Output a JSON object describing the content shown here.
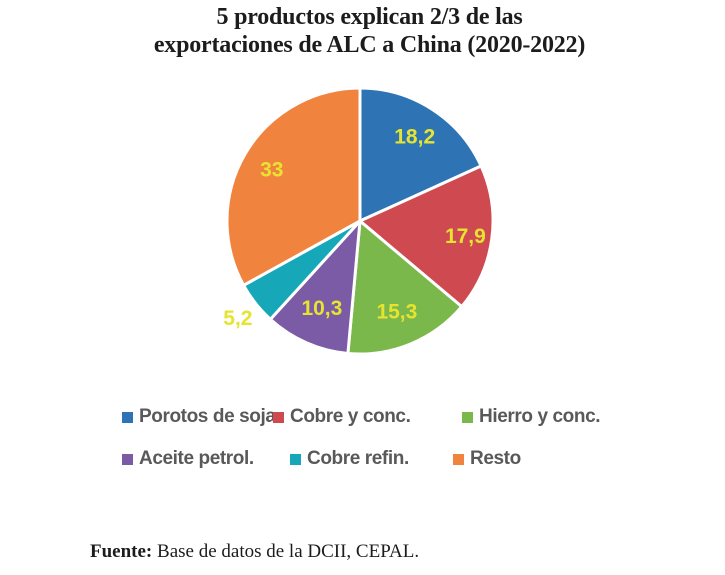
{
  "title": {
    "line1": "5 productos explican 2/3 de las",
    "line2": "exportaciones de ALC a China (2020-2022)"
  },
  "chart_data": {
    "type": "pie",
    "title": "5 productos explican 2/3 de las exportaciones de ALC a China (2020-2022)",
    "unit": "percent share",
    "start_angle": "top",
    "direction": "clockwise",
    "label_color": "#e6e430",
    "legend_position": "bottom",
    "slices": [
      {
        "label": "Porotos de soja",
        "value": 18.2,
        "display": "18,2",
        "color": "#2e74b5",
        "label_placement": "inside"
      },
      {
        "label": "Cobre y conc.",
        "value": 17.9,
        "display": "17,9",
        "color": "#ce4a50",
        "label_placement": "inside"
      },
      {
        "label": "Hierro y conc.",
        "value": 15.3,
        "display": "15,3",
        "color": "#7ab84c",
        "label_placement": "inside"
      },
      {
        "label": "Aceite petrol.",
        "value": 10.3,
        "display": "10,3",
        "color": "#7b5ba6",
        "label_placement": "inside"
      },
      {
        "label": "Cobre refin.",
        "value": 5.2,
        "display": "5,2",
        "color": "#16a8b9",
        "label_placement": "outside"
      },
      {
        "label": "Resto",
        "value": 33,
        "display": "33",
        "color": "#f0843f",
        "label_placement": "inside"
      }
    ]
  },
  "footer": {
    "label": "Fuente:",
    "text": " Base de datos de la DCII, CEPAL."
  }
}
